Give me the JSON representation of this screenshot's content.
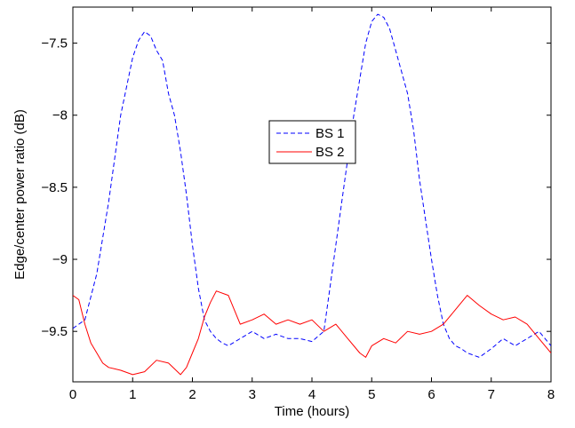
{
  "chart_data": {
    "type": "line",
    "title": "",
    "xlabel": "Time (hours)",
    "ylabel": "Edge/center power ratio (dB)",
    "xlim": [
      0,
      8
    ],
    "ylim": [
      -9.85,
      -7.25
    ],
    "x_ticks": [
      0,
      1,
      2,
      3,
      4,
      5,
      6,
      7,
      8
    ],
    "x_tick_labels": [
      "0",
      "1",
      "2",
      "3",
      "4",
      "5",
      "6",
      "7",
      "8"
    ],
    "y_ticks": [
      -9.5,
      -9,
      -8.5,
      -8,
      -7.5
    ],
    "y_tick_labels": [
      "-9.5",
      "-9",
      "-8.5",
      "-8",
      "-7.5"
    ],
    "grid": false,
    "legend_position": "center",
    "series": [
      {
        "name": "BS 1",
        "color": "#0000ff",
        "line_style": "dashed",
        "x": [
          0,
          0.2,
          0.4,
          0.6,
          0.8,
          1.0,
          1.1,
          1.2,
          1.3,
          1.4,
          1.5,
          1.6,
          1.7,
          1.8,
          1.9,
          2.0,
          2.1,
          2.2,
          2.3,
          2.4,
          2.5,
          2.6,
          2.8,
          3.0,
          3.2,
          3.4,
          3.6,
          3.8,
          4.0,
          4.2,
          4.3,
          4.5,
          4.7,
          4.9,
          5.0,
          5.1,
          5.2,
          5.3,
          5.4,
          5.5,
          5.6,
          5.7,
          5.8,
          6.0,
          6.1,
          6.2,
          6.3,
          6.4,
          6.5,
          6.6,
          6.8,
          7.0,
          7.2,
          7.4,
          7.6,
          7.8,
          8.0
        ],
        "y": [
          -9.48,
          -9.42,
          -9.1,
          -8.6,
          -8.0,
          -7.6,
          -7.48,
          -7.42,
          -7.45,
          -7.55,
          -7.62,
          -7.85,
          -8.0,
          -8.25,
          -8.55,
          -8.9,
          -9.2,
          -9.42,
          -9.5,
          -9.55,
          -9.58,
          -9.6,
          -9.55,
          -9.5,
          -9.55,
          -9.52,
          -9.55,
          -9.55,
          -9.57,
          -9.5,
          -9.2,
          -8.6,
          -8.0,
          -7.5,
          -7.35,
          -7.3,
          -7.32,
          -7.4,
          -7.55,
          -7.7,
          -7.85,
          -8.1,
          -8.45,
          -9.0,
          -9.25,
          -9.45,
          -9.55,
          -9.6,
          -9.62,
          -9.65,
          -9.68,
          -9.62,
          -9.55,
          -9.6,
          -9.55,
          -9.5,
          -9.6
        ]
      },
      {
        "name": "BS 2",
        "color": "#ff0000",
        "line_style": "solid",
        "x": [
          0,
          0.1,
          0.2,
          0.3,
          0.4,
          0.5,
          0.6,
          0.8,
          1.0,
          1.2,
          1.4,
          1.6,
          1.8,
          1.9,
          2.0,
          2.1,
          2.2,
          2.3,
          2.4,
          2.6,
          2.8,
          3.0,
          3.2,
          3.4,
          3.6,
          3.8,
          4.0,
          4.2,
          4.4,
          4.6,
          4.8,
          4.9,
          5.0,
          5.2,
          5.4,
          5.6,
          5.8,
          6.0,
          6.2,
          6.4,
          6.6,
          6.8,
          7.0,
          7.2,
          7.4,
          7.6,
          7.8,
          8.0
        ],
        "y": [
          -9.25,
          -9.28,
          -9.45,
          -9.58,
          -9.65,
          -9.72,
          -9.75,
          -9.77,
          -9.8,
          -9.78,
          -9.7,
          -9.72,
          -9.8,
          -9.75,
          -9.65,
          -9.55,
          -9.4,
          -9.3,
          -9.22,
          -9.25,
          -9.45,
          -9.42,
          -9.38,
          -9.45,
          -9.42,
          -9.45,
          -9.42,
          -9.5,
          -9.45,
          -9.55,
          -9.65,
          -9.68,
          -9.6,
          -9.55,
          -9.58,
          -9.5,
          -9.52,
          -9.5,
          -9.45,
          -9.35,
          -9.25,
          -9.32,
          -9.38,
          -9.42,
          -9.4,
          -9.45,
          -9.55,
          -9.65
        ]
      }
    ]
  }
}
